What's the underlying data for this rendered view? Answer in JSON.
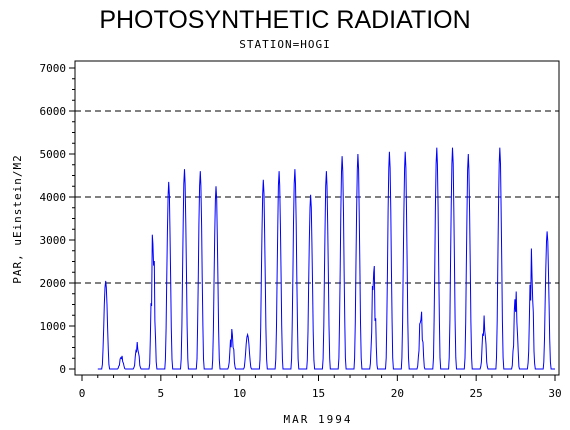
{
  "chart_data": {
    "type": "line",
    "title": "PHOTOSYNTHETIC RADIATION",
    "subtitle": "STATION=HOGI",
    "xlabel": "MAR 1994",
    "ylabel": "PAR, uEinstein/M2",
    "xlim": [
      0,
      30
    ],
    "ylim": [
      0,
      7000
    ],
    "xticks": [
      0,
      5,
      10,
      15,
      20,
      25,
      30
    ],
    "yticks": [
      0,
      1000,
      2000,
      3000,
      4000,
      5000,
      6000,
      7000
    ],
    "xtick_labels": [
      "0",
      "5",
      "10",
      "15",
      "20",
      "25",
      "30"
    ],
    "ytick_labels": [
      "0",
      "1000",
      "2000",
      "3000",
      "4000",
      "5000",
      "6000",
      "7000"
    ],
    "reference_lines_y": [
      2000,
      4000,
      6000
    ],
    "line_color": "#0000ff",
    "daily_peaks": [
      {
        "day": 1,
        "peak": 2050,
        "shape": "single"
      },
      {
        "day": 2,
        "peak": 330,
        "shape": "multi"
      },
      {
        "day": 3,
        "peak": 630,
        "shape": "multi"
      },
      {
        "day": 4,
        "peak": 3450,
        "shape": "multi"
      },
      {
        "day": 5,
        "peak": 4350,
        "shape": "single"
      },
      {
        "day": 6,
        "peak": 4650,
        "shape": "single"
      },
      {
        "day": 7,
        "peak": 4600,
        "shape": "single"
      },
      {
        "day": 8,
        "peak": 4250,
        "shape": "single"
      },
      {
        "day": 9,
        "peak": 970,
        "shape": "multi"
      },
      {
        "day": 10,
        "peak": 800,
        "shape": "single"
      },
      {
        "day": 11,
        "peak": 4400,
        "shape": "single"
      },
      {
        "day": 12,
        "peak": 4600,
        "shape": "single"
      },
      {
        "day": 13,
        "peak": 4650,
        "shape": "single"
      },
      {
        "day": 14,
        "peak": 4050,
        "shape": "single"
      },
      {
        "day": 15,
        "peak": 4600,
        "shape": "single"
      },
      {
        "day": 16,
        "peak": 4950,
        "shape": "single"
      },
      {
        "day": 17,
        "peak": 5000,
        "shape": "single"
      },
      {
        "day": 18,
        "peak": 2650,
        "shape": "multi"
      },
      {
        "day": 19,
        "peak": 5050,
        "shape": "single"
      },
      {
        "day": 20,
        "peak": 5050,
        "shape": "single"
      },
      {
        "day": 21,
        "peak": 1450,
        "shape": "multi"
      },
      {
        "day": 22,
        "peak": 5150,
        "shape": "single"
      },
      {
        "day": 23,
        "peak": 5150,
        "shape": "single"
      },
      {
        "day": 24,
        "peak": 5000,
        "shape": "single"
      },
      {
        "day": 25,
        "peak": 1250,
        "shape": "multi"
      },
      {
        "day": 26,
        "peak": 5150,
        "shape": "single"
      },
      {
        "day": 27,
        "peak": 1950,
        "shape": "multi"
      },
      {
        "day": 28,
        "peak": 2850,
        "shape": "multi"
      },
      {
        "day": 29,
        "peak": 3200,
        "shape": "single"
      }
    ]
  }
}
